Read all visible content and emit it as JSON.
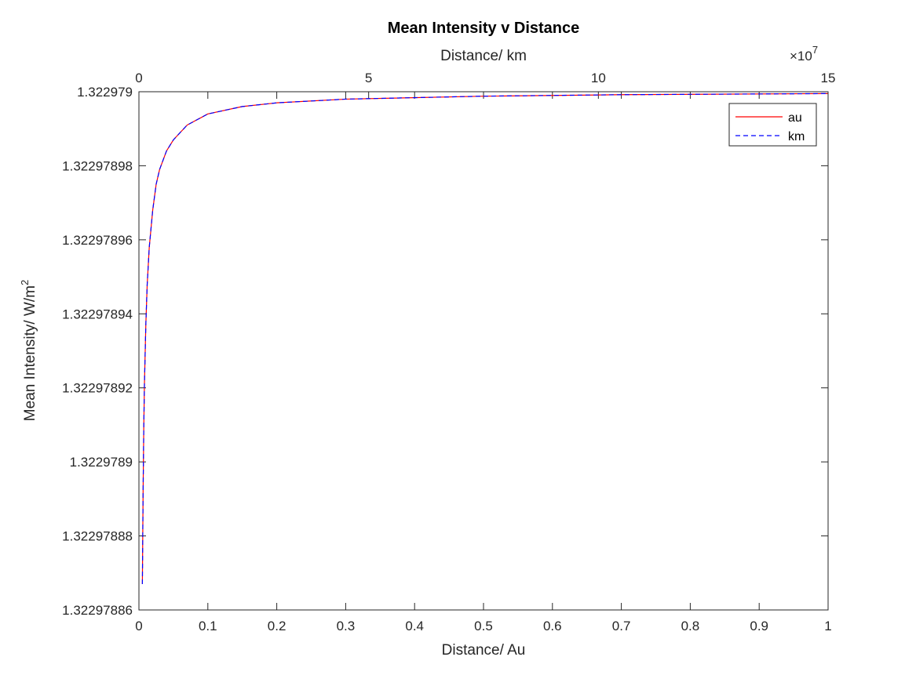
{
  "chart_data": {
    "type": "line",
    "title": "Mean Intensity v Distance",
    "xlabel": "Distance/ Au",
    "x2label": "Distance/ km",
    "x2_exponent_base": "×10",
    "x2_exponent": "7",
    "ylabel": "Mean Intensity/ W/m",
    "ylabel_superscript": "2",
    "xlim": [
      0,
      1
    ],
    "x2lim": [
      0,
      15
    ],
    "ylim": [
      1.32297886,
      1.322979
    ],
    "xticks": [
      0,
      0.1,
      0.2,
      0.3,
      0.4,
      0.5,
      0.6,
      0.7,
      0.8,
      0.9,
      1
    ],
    "xtick_labels": [
      "0",
      "0.1",
      "0.2",
      "0.3",
      "0.4",
      "0.5",
      "0.6",
      "0.7",
      "0.8",
      "0.9",
      "1"
    ],
    "x2ticks": [
      0,
      5,
      10,
      15
    ],
    "x2tick_labels": [
      "0",
      "5",
      "10",
      "15"
    ],
    "yticks": [
      1.32297886,
      1.32297888,
      1.3229789,
      1.32297892,
      1.32297894,
      1.32297896,
      1.32297898,
      1.322979
    ],
    "ytick_labels": [
      "1.32297886",
      "1.32297888",
      "1.3229789",
      "1.32297892",
      "1.32297894",
      "1.32297896",
      "1.32297898",
      "1.322979"
    ],
    "grid": false,
    "legend_position": "top-right",
    "series": [
      {
        "name": "au",
        "color": "#ff0000",
        "style": "solid",
        "x": [
          0.005,
          0.006,
          0.007,
          0.008,
          0.01,
          0.012,
          0.015,
          0.02,
          0.025,
          0.03,
          0.04,
          0.05,
          0.07,
          0.1,
          0.15,
          0.2,
          0.3,
          0.5,
          0.7,
          1.0
        ],
        "y": [
          1.322978867,
          1.322978891,
          1.322978909,
          1.322978921,
          1.322978937,
          1.322978948,
          1.322978958,
          1.322978968,
          1.322978975,
          1.322978979,
          1.322978984,
          1.322978987,
          1.322978991,
          1.322978994,
          1.322978996,
          1.322978997,
          1.322978998,
          1.3229789988,
          1.3229789992,
          1.3229789995
        ]
      },
      {
        "name": "km",
        "color": "#0000ff",
        "style": "dashed",
        "x": [
          0.005,
          0.006,
          0.007,
          0.008,
          0.01,
          0.012,
          0.015,
          0.02,
          0.025,
          0.03,
          0.04,
          0.05,
          0.07,
          0.1,
          0.15,
          0.2,
          0.3,
          0.5,
          0.7,
          1.0
        ],
        "y": [
          1.322978867,
          1.322978891,
          1.322978909,
          1.322978921,
          1.322978937,
          1.322978948,
          1.322978958,
          1.322978968,
          1.322978975,
          1.322978979,
          1.322978984,
          1.322978987,
          1.322978991,
          1.322978994,
          1.322978996,
          1.322978997,
          1.322978998,
          1.3229789988,
          1.3229789992,
          1.3229789995
        ]
      }
    ]
  }
}
